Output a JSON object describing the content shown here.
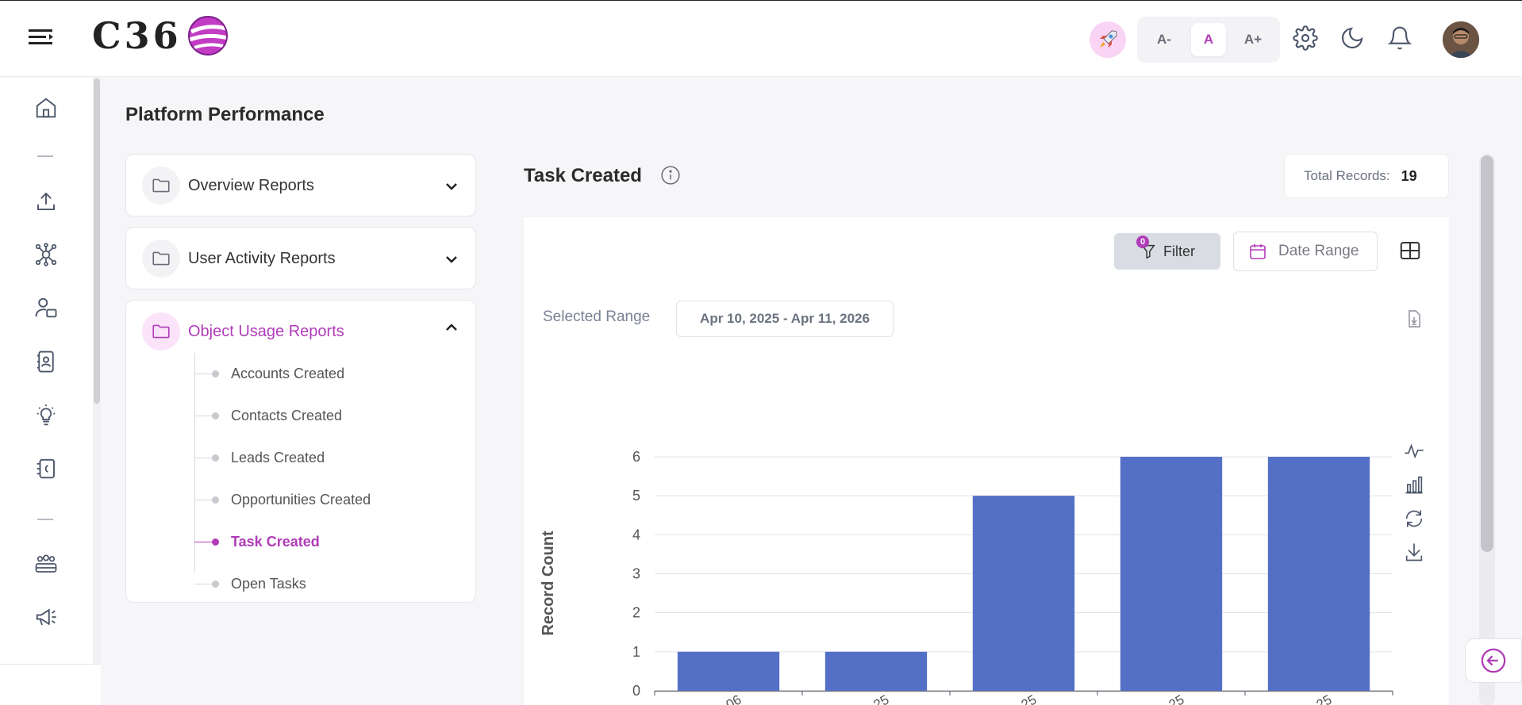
{
  "header": {
    "logo_text": "C36",
    "font_controls": [
      "A-",
      "A",
      "A+"
    ],
    "active_font_control": "A"
  },
  "page": {
    "title": "Platform Performance"
  },
  "reports": {
    "groups": [
      {
        "label": "Overview Reports",
        "expanded": false
      },
      {
        "label": "User Activity Reports",
        "expanded": false
      },
      {
        "label": "Object Usage Reports",
        "expanded": true
      }
    ],
    "object_usage_items": [
      {
        "label": "Accounts Created",
        "active": false
      },
      {
        "label": "Contacts Created",
        "active": false
      },
      {
        "label": "Leads Created",
        "active": false
      },
      {
        "label": "Opportunities Created",
        "active": false
      },
      {
        "label": "Task Created",
        "active": true
      },
      {
        "label": "Open Tasks",
        "active": false
      }
    ]
  },
  "panel": {
    "title": "Task Created",
    "total_label": "Total Records:",
    "total_value": "19",
    "filter_label": "Filter",
    "filter_count": "0",
    "date_range_label": "Date Range",
    "selected_range_label": "Selected Range",
    "selected_range_value": "Apr 10, 2025 - Apr 11, 2026"
  },
  "colors": {
    "accent": "#b03cb8",
    "bar": "#5470c6"
  },
  "chart_data": {
    "type": "bar",
    "categories": [
      "…06",
      "…25",
      "…25",
      "…25",
      "…25"
    ],
    "values": [
      1,
      1,
      5,
      6,
      6
    ],
    "ylabel": "Record Count",
    "ylim": [
      0,
      6
    ],
    "yticks": [
      0,
      1,
      2,
      3,
      4,
      5,
      6
    ],
    "grid": true
  }
}
